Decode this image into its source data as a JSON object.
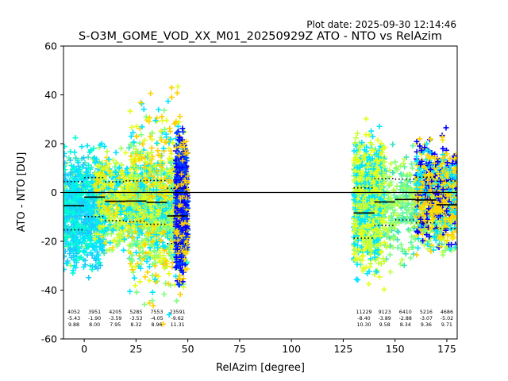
{
  "chart_data": {
    "type": "scatter",
    "plot_date": "Plot date: 2025-09-30 12:14:46",
    "title": "S-O3M_GOME_VOD_XX_M01_20250929Z ATO - NTO vs RelAzim",
    "xlabel": "RelAzim [degree]",
    "ylabel": "ATO - NTO [DU]",
    "xlim": [
      -10,
      180
    ],
    "ylim": [
      -60,
      60
    ],
    "xticks": [
      0,
      25,
      50,
      75,
      100,
      125,
      150,
      175
    ],
    "yticks": [
      -60,
      -40,
      -20,
      0,
      20,
      40,
      60
    ],
    "zero_line": 0,
    "bins": [
      {
        "x0": -10,
        "x1": 0,
        "mean": -5.43,
        "std": 9.88,
        "count": "4052",
        "mean_label": "-5.43",
        "std_label": "9.88"
      },
      {
        "x0": 0,
        "x1": 10,
        "mean": -1.9,
        "std": 8.0,
        "count": "3951",
        "mean_label": "-1.90",
        "std_label": "8.00"
      },
      {
        "x0": 10,
        "x1": 20,
        "mean": -3.59,
        "std": 7.95,
        "count": "4205",
        "mean_label": "-3.59",
        "std_label": "7.95"
      },
      {
        "x0": 20,
        "x1": 30,
        "mean": -3.53,
        "std": 8.32,
        "count": "5285",
        "mean_label": "-3.53",
        "std_label": "8.32"
      },
      {
        "x0": 30,
        "x1": 40,
        "mean": -4.05,
        "std": 8.96,
        "count": "7553",
        "mean_label": "-4.05",
        "std_label": "8.96"
      },
      {
        "x0": 40,
        "x1": 50,
        "mean": -9.62,
        "std": 11.31,
        "count": "23591",
        "mean_label": "-9.62",
        "std_label": "11.31"
      },
      {
        "x0": 130,
        "x1": 140,
        "mean": -8.4,
        "std": 10.3,
        "count": "11229",
        "mean_label": "-8.40",
        "std_label": "10.30"
      },
      {
        "x0": 140,
        "x1": 150,
        "mean": -3.89,
        "std": 9.58,
        "count": "9123",
        "mean_label": "-3.89",
        "std_label": "9.58"
      },
      {
        "x0": 150,
        "x1": 160,
        "mean": -2.88,
        "std": 8.34,
        "count": "6410",
        "mean_label": "-2.88",
        "std_label": "8.34"
      },
      {
        "x0": 160,
        "x1": 170,
        "mean": -3.07,
        "std": 9.36,
        "count": "5216",
        "mean_label": "-3.07",
        "std_label": "9.36"
      },
      {
        "x0": 170,
        "x1": 180,
        "mean": -5.02,
        "std": 9.71,
        "count": "4686",
        "mean_label": "-5.02",
        "std_label": "9.71"
      }
    ],
    "scatter_clusters": [
      {
        "x0": -10,
        "x1": 50,
        "y_lo": -35,
        "y_hi": 22,
        "colors": [
          "#7fff7f",
          "#5ff79f",
          "#9fff5f",
          "#3fdfbf",
          "#bfff3f"
        ]
      },
      {
        "x0": -10,
        "x1": 10,
        "y_lo": -40,
        "y_hi": 25,
        "colors": [
          "#00e5ff",
          "#1fc7ff",
          "#00ffd0"
        ]
      },
      {
        "x0": 5,
        "x1": 45,
        "y_lo": -28,
        "y_hi": 22,
        "colors": [
          "#00e5ff",
          "#e5ff1a",
          "#ffe000",
          "#c4ff3a"
        ]
      },
      {
        "x0": 22,
        "x1": 50,
        "y_lo": -58,
        "y_hi": 50,
        "colors": [
          "#e5ff1a",
          "#00e5ff",
          "#7fff7f",
          "#ffd000"
        ]
      },
      {
        "x0": 44,
        "x1": 50,
        "y_lo": -45,
        "y_hi": 33,
        "colors": [
          "#0000ff",
          "#0040ff",
          "#ffd000"
        ]
      },
      {
        "x0": 130,
        "x1": 180,
        "y_lo": -35,
        "y_hi": 25,
        "colors": [
          "#7fff7f",
          "#5ff79f",
          "#9fff5f",
          "#3fdfbf",
          "#bfff3f"
        ]
      },
      {
        "x0": 130,
        "x1": 145,
        "y_lo": -45,
        "y_hi": 35,
        "colors": [
          "#00e5ff",
          "#c4ff3a",
          "#e5ff1a"
        ]
      },
      {
        "x0": 160,
        "x1": 180,
        "y_lo": -30,
        "y_hi": 30,
        "colors": [
          "#ffe000",
          "#ffd000",
          "#0000ff",
          "#00e5ff"
        ]
      }
    ]
  }
}
